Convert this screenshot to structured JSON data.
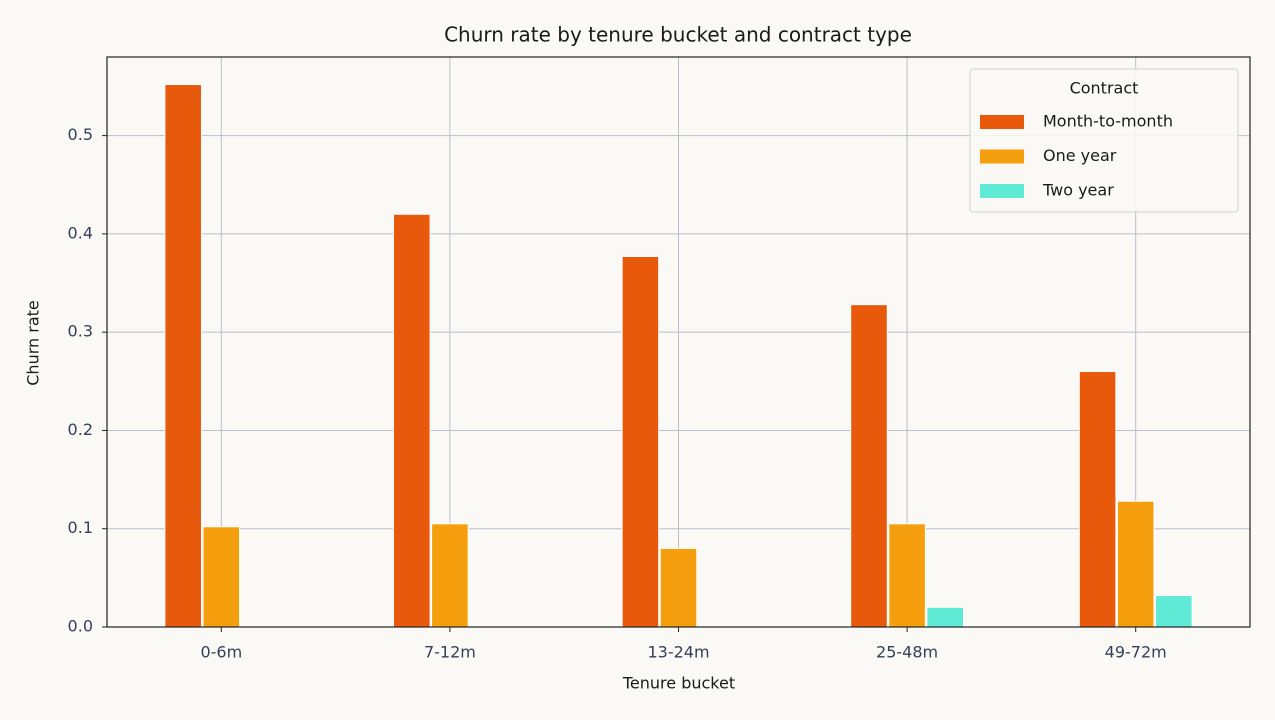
{
  "chart_data": {
    "type": "bar",
    "title": "Churn rate by tenure bucket and contract type",
    "x_label": "Tenure bucket",
    "y_label": "Churn rate",
    "categories": [
      "0-6m",
      "7-12m",
      "13-24m",
      "25-48m",
      "49-72m"
    ],
    "series": [
      {
        "name": "Month-to-month",
        "color": "#e8590c",
        "values": [
          0.552,
          0.42,
          0.377,
          0.328,
          0.26
        ]
      },
      {
        "name": "One year",
        "color": "#f59f0f",
        "values": [
          0.102,
          0.105,
          0.08,
          0.105,
          0.128
        ]
      },
      {
        "name": "Two year",
        "color": "#5eead4",
        "values": [
          0,
          0,
          0,
          0.02,
          0.032
        ]
      }
    ],
    "ylim": [
      0,
      0.58
    ],
    "yticks": [
      {
        "value": 0,
        "label": "0.0"
      },
      0.1,
      0.2,
      0.3,
      0.4,
      0.5
    ],
    "grid": true,
    "legend": {
      "title": "Contract",
      "position": "upper right"
    }
  }
}
